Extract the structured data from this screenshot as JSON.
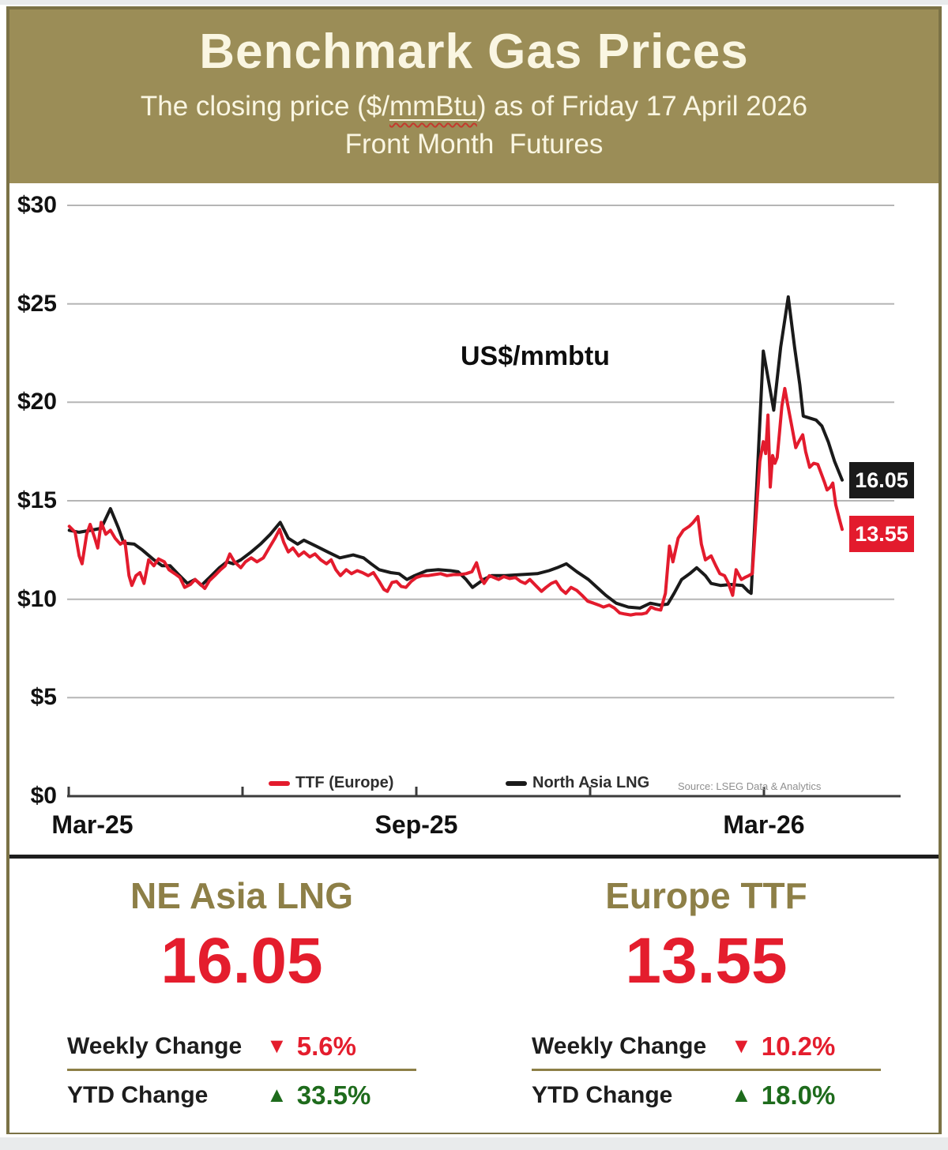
{
  "header": {
    "title": "Benchmark Gas Prices",
    "subtitle_part1": "The closing price ($/",
    "subtitle_mmbtu": "mmBtu",
    "subtitle_part2": ") as of Friday 17 April 2026",
    "line3": "Front Month  Futures"
  },
  "chart": {
    "annotation": "US$/mmbtu",
    "legend": [
      {
        "label": "TTF (Europe)",
        "color": "#e31b2d"
      },
      {
        "label": "North Asia LNG",
        "color": "#1a1a1a"
      }
    ],
    "source": "Source: LSEG Data & Analytics",
    "end_labels": [
      {
        "text": "16.05",
        "bg": "#1a1a1a"
      },
      {
        "text": "13.55",
        "bg": "#e31b2d"
      }
    ]
  },
  "chart_data": {
    "type": "line",
    "title": "Benchmark Gas Prices",
    "subtitle": "The closing price ($/mmBtu) as of Friday 17 April 2026, Front Month Futures",
    "ylabel": "US$/mmbtu",
    "x_unit": "months since Mar-2025",
    "ylim": [
      0,
      30
    ],
    "grid": true,
    "legend_position": "bottom-inside",
    "y_ticks": [
      {
        "v": 0,
        "label": "$0"
      },
      {
        "v": 5,
        "label": "$5"
      },
      {
        "v": 10,
        "label": "$10"
      },
      {
        "v": 15,
        "label": "$15"
      },
      {
        "v": 20,
        "label": "$20"
      },
      {
        "v": 25,
        "label": "$25"
      },
      {
        "v": 30,
        "label": "$30"
      }
    ],
    "x_ticks": [
      {
        "m": 0,
        "label": "Mar-25"
      },
      {
        "m": 3,
        "label": ""
      },
      {
        "m": 6,
        "label": "Sep-25"
      },
      {
        "m": 9,
        "label": ""
      },
      {
        "m": 12,
        "label": "Mar-26"
      }
    ],
    "series": [
      {
        "name": "TTF (Europe)",
        "slug": "ttf-europe",
        "color": "#e31b2d",
        "last_value": 13.55,
        "points": [
          [
            0.01,
            13.7
          ],
          [
            0.11,
            13.4
          ],
          [
            0.18,
            12.2
          ],
          [
            0.23,
            11.8
          ],
          [
            0.31,
            13.3
          ],
          [
            0.37,
            13.8
          ],
          [
            0.45,
            13.1
          ],
          [
            0.5,
            12.6
          ],
          [
            0.56,
            13.9
          ],
          [
            0.64,
            13.3
          ],
          [
            0.72,
            13.5
          ],
          [
            0.8,
            13.1
          ],
          [
            0.89,
            12.8
          ],
          [
            0.97,
            12.95
          ],
          [
            1.04,
            11.2
          ],
          [
            1.09,
            10.7
          ],
          [
            1.16,
            11.2
          ],
          [
            1.23,
            11.35
          ],
          [
            1.3,
            10.8
          ],
          [
            1.38,
            12.0
          ],
          [
            1.47,
            11.7
          ],
          [
            1.55,
            12.05
          ],
          [
            1.65,
            11.9
          ],
          [
            1.73,
            11.5
          ],
          [
            1.83,
            11.3
          ],
          [
            1.92,
            11.1
          ],
          [
            2.0,
            10.6
          ],
          [
            2.1,
            10.75
          ],
          [
            2.18,
            11.0
          ],
          [
            2.26,
            10.8
          ],
          [
            2.35,
            10.55
          ],
          [
            2.43,
            10.95
          ],
          [
            2.52,
            11.2
          ],
          [
            2.62,
            11.5
          ],
          [
            2.7,
            11.7
          ],
          [
            2.78,
            12.3
          ],
          [
            2.86,
            11.9
          ],
          [
            2.97,
            11.6
          ],
          [
            3.05,
            11.9
          ],
          [
            3.15,
            12.1
          ],
          [
            3.25,
            11.9
          ],
          [
            3.36,
            12.1
          ],
          [
            3.46,
            12.6
          ],
          [
            3.56,
            13.1
          ],
          [
            3.64,
            13.55
          ],
          [
            3.71,
            12.9
          ],
          [
            3.79,
            12.4
          ],
          [
            3.87,
            12.6
          ],
          [
            3.97,
            12.2
          ],
          [
            4.06,
            12.4
          ],
          [
            4.16,
            12.15
          ],
          [
            4.25,
            12.3
          ],
          [
            4.35,
            12.0
          ],
          [
            4.45,
            11.8
          ],
          [
            4.53,
            12.0
          ],
          [
            4.61,
            11.5
          ],
          [
            4.69,
            11.2
          ],
          [
            4.79,
            11.5
          ],
          [
            4.88,
            11.3
          ],
          [
            4.98,
            11.45
          ],
          [
            5.07,
            11.35
          ],
          [
            5.17,
            11.2
          ],
          [
            5.26,
            11.35
          ],
          [
            5.36,
            10.9
          ],
          [
            5.44,
            10.5
          ],
          [
            5.5,
            10.4
          ],
          [
            5.58,
            10.85
          ],
          [
            5.66,
            10.9
          ],
          [
            5.74,
            10.65
          ],
          [
            5.82,
            10.6
          ],
          [
            5.91,
            10.9
          ],
          [
            6.0,
            11.1
          ],
          [
            6.1,
            11.2
          ],
          [
            6.2,
            11.2
          ],
          [
            6.31,
            11.25
          ],
          [
            6.42,
            11.3
          ],
          [
            6.53,
            11.2
          ],
          [
            6.64,
            11.25
          ],
          [
            6.75,
            11.25
          ],
          [
            6.86,
            11.3
          ],
          [
            6.96,
            11.4
          ],
          [
            7.04,
            11.85
          ],
          [
            7.11,
            11.1
          ],
          [
            7.17,
            10.8
          ],
          [
            7.26,
            11.2
          ],
          [
            7.34,
            11.1
          ],
          [
            7.42,
            11.0
          ],
          [
            7.51,
            11.15
          ],
          [
            7.61,
            11.05
          ],
          [
            7.71,
            11.1
          ],
          [
            7.8,
            10.9
          ],
          [
            7.88,
            10.8
          ],
          [
            7.96,
            11.0
          ],
          [
            8.06,
            10.7
          ],
          [
            8.16,
            10.4
          ],
          [
            8.24,
            10.6
          ],
          [
            8.33,
            10.8
          ],
          [
            8.41,
            10.9
          ],
          [
            8.5,
            10.5
          ],
          [
            8.58,
            10.3
          ],
          [
            8.67,
            10.6
          ],
          [
            8.77,
            10.45
          ],
          [
            8.86,
            10.2
          ],
          [
            8.96,
            9.9
          ],
          [
            9.06,
            9.8
          ],
          [
            9.15,
            9.7
          ],
          [
            9.23,
            9.6
          ],
          [
            9.33,
            9.7
          ],
          [
            9.42,
            9.55
          ],
          [
            9.51,
            9.3
          ],
          [
            9.6,
            9.25
          ],
          [
            9.7,
            9.2
          ],
          [
            9.79,
            9.25
          ],
          [
            9.89,
            9.25
          ],
          [
            9.97,
            9.3
          ],
          [
            10.05,
            9.6
          ],
          [
            10.13,
            9.5
          ],
          [
            10.22,
            9.45
          ],
          [
            10.3,
            10.3
          ],
          [
            10.37,
            12.7
          ],
          [
            10.43,
            11.9
          ],
          [
            10.52,
            13.1
          ],
          [
            10.61,
            13.5
          ],
          [
            10.71,
            13.7
          ],
          [
            10.78,
            13.9
          ],
          [
            10.86,
            14.2
          ],
          [
            10.92,
            12.8
          ],
          [
            10.99,
            12.0
          ],
          [
            11.09,
            12.2
          ],
          [
            11.17,
            11.7
          ],
          [
            11.24,
            11.3
          ],
          [
            11.32,
            11.2
          ],
          [
            11.39,
            10.8
          ],
          [
            11.46,
            10.2
          ],
          [
            11.52,
            11.5
          ],
          [
            11.61,
            11.0
          ],
          [
            11.67,
            11.1
          ],
          [
            11.74,
            11.2
          ],
          [
            11.8,
            11.3
          ],
          [
            11.86,
            14.0
          ],
          [
            11.93,
            17.0
          ],
          [
            11.99,
            18.0
          ],
          [
            12.03,
            17.4
          ],
          [
            12.07,
            19.35
          ],
          [
            12.11,
            15.7
          ],
          [
            12.15,
            17.3
          ],
          [
            12.19,
            16.9
          ],
          [
            12.23,
            17.2
          ],
          [
            12.27,
            18.5
          ],
          [
            12.31,
            19.8
          ],
          [
            12.36,
            20.7
          ],
          [
            12.41,
            19.9
          ],
          [
            12.48,
            18.8
          ],
          [
            12.55,
            17.7
          ],
          [
            12.6,
            18.0
          ],
          [
            12.67,
            18.35
          ],
          [
            12.72,
            17.5
          ],
          [
            12.79,
            16.7
          ],
          [
            12.86,
            16.9
          ],
          [
            12.93,
            16.85
          ],
          [
            13.0,
            16.3
          ],
          [
            13.05,
            15.9
          ],
          [
            13.09,
            15.55
          ],
          [
            13.15,
            15.7
          ],
          [
            13.19,
            15.9
          ],
          [
            13.24,
            14.8
          ],
          [
            13.3,
            14.1
          ],
          [
            13.35,
            13.55
          ]
        ]
      },
      {
        "name": "North Asia LNG",
        "slug": "north-asia-lng",
        "color": "#1a1a1a",
        "last_value": 16.05,
        "points": [
          [
            0.01,
            13.5
          ],
          [
            0.18,
            13.4
          ],
          [
            0.38,
            13.5
          ],
          [
            0.56,
            13.6
          ],
          [
            0.72,
            14.6
          ],
          [
            0.86,
            13.6
          ],
          [
            0.95,
            12.85
          ],
          [
            1.13,
            12.8
          ],
          [
            1.27,
            12.5
          ],
          [
            1.47,
            12.0
          ],
          [
            1.61,
            11.7
          ],
          [
            1.75,
            11.7
          ],
          [
            1.88,
            11.3
          ],
          [
            2.05,
            10.8
          ],
          [
            2.18,
            11.0
          ],
          [
            2.29,
            10.7
          ],
          [
            2.43,
            11.1
          ],
          [
            2.6,
            11.6
          ],
          [
            2.73,
            11.9
          ],
          [
            2.84,
            11.8
          ],
          [
            2.97,
            12.0
          ],
          [
            3.15,
            12.4
          ],
          [
            3.31,
            12.8
          ],
          [
            3.48,
            13.3
          ],
          [
            3.65,
            13.9
          ],
          [
            3.79,
            13.1
          ],
          [
            3.95,
            12.8
          ],
          [
            4.06,
            13.0
          ],
          [
            4.27,
            12.7
          ],
          [
            4.47,
            12.4
          ],
          [
            4.68,
            12.1
          ],
          [
            4.91,
            12.25
          ],
          [
            5.09,
            12.1
          ],
          [
            5.22,
            11.8
          ],
          [
            5.36,
            11.5
          ],
          [
            5.56,
            11.35
          ],
          [
            5.7,
            11.3
          ],
          [
            5.84,
            11.0
          ],
          [
            5.97,
            11.2
          ],
          [
            6.18,
            11.45
          ],
          [
            6.38,
            11.5
          ],
          [
            6.59,
            11.45
          ],
          [
            6.72,
            11.4
          ],
          [
            6.86,
            11.0
          ],
          [
            6.97,
            10.6
          ],
          [
            7.16,
            11.0
          ],
          [
            7.3,
            11.2
          ],
          [
            7.54,
            11.2
          ],
          [
            7.81,
            11.25
          ],
          [
            8.09,
            11.3
          ],
          [
            8.29,
            11.45
          ],
          [
            8.43,
            11.6
          ],
          [
            8.59,
            11.8
          ],
          [
            8.77,
            11.4
          ],
          [
            8.97,
            11.0
          ],
          [
            9.14,
            10.55
          ],
          [
            9.27,
            10.2
          ],
          [
            9.45,
            9.8
          ],
          [
            9.66,
            9.6
          ],
          [
            9.86,
            9.55
          ],
          [
            10.04,
            9.8
          ],
          [
            10.2,
            9.7
          ],
          [
            10.34,
            9.75
          ],
          [
            10.45,
            10.3
          ],
          [
            10.58,
            11.0
          ],
          [
            10.72,
            11.3
          ],
          [
            10.84,
            11.6
          ],
          [
            10.99,
            11.2
          ],
          [
            11.09,
            10.8
          ],
          [
            11.25,
            10.7
          ],
          [
            11.43,
            10.75
          ],
          [
            11.63,
            10.7
          ],
          [
            11.73,
            10.4
          ],
          [
            11.78,
            10.3
          ],
          [
            11.88,
            16.0
          ],
          [
            11.99,
            22.6
          ],
          [
            12.17,
            19.6
          ],
          [
            12.29,
            22.8
          ],
          [
            12.42,
            25.35
          ],
          [
            12.53,
            22.8
          ],
          [
            12.62,
            20.9
          ],
          [
            12.68,
            19.3
          ],
          [
            12.79,
            19.2
          ],
          [
            12.9,
            19.1
          ],
          [
            13.0,
            18.8
          ],
          [
            13.11,
            18.0
          ],
          [
            13.22,
            17.0
          ],
          [
            13.35,
            16.05
          ]
        ]
      }
    ]
  },
  "panels": [
    {
      "title": "NE Asia LNG",
      "value": "16.05",
      "weekly_label": "Weekly Change",
      "weekly_arrow": "▼",
      "weekly_change": "5.6%",
      "ytd_label": "YTD Change",
      "ytd_arrow": "▲",
      "ytd_change": "33.5%"
    },
    {
      "title": "Europe TTF",
      "value": "13.55",
      "weekly_label": "Weekly Change",
      "weekly_arrow": "▼",
      "weekly_change": "10.2%",
      "ytd_label": "YTD Change",
      "ytd_arrow": "▲",
      "ytd_change": "18.0%"
    }
  ],
  "colors": {
    "header_bg": "#9b8d57",
    "frame_border": "#7b7246",
    "ttf_red": "#e31b2d",
    "lng_black": "#1a1a1a",
    "panel_title_olive": "#8d7f47",
    "value_red": "#e41d2d",
    "gain_green": "#1e6b1c",
    "gridline": "#b5b5b5"
  }
}
